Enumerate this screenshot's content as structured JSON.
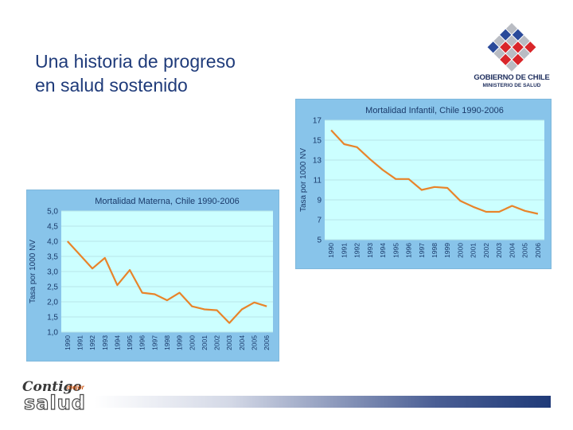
{
  "slide": {
    "title_line1": "Una historia de progreso",
    "title_line2": "en salud sostenido"
  },
  "logo": {
    "name_line1": "GOBIERNO DE CHILE",
    "name_line2": "MINISTERIO DE SALUD",
    "colors": {
      "blue": "#2a4a9a",
      "red": "#d9262a",
      "gray": "#b9bcc3"
    }
  },
  "footer": {
    "brand_word1": "Contigo",
    "brand_small": "mejor",
    "brand_word2": "salud"
  },
  "chart_data": [
    {
      "type": "line",
      "title": "Mortalidad Infantil, Chile 1990-2006",
      "ylabel": "Tasa por 1000 NV",
      "xlabel": "",
      "categories": [
        "1990",
        "1991",
        "1992",
        "1993",
        "1994",
        "1995",
        "1996",
        "1997",
        "1998",
        "1999",
        "2000",
        "2001",
        "2002",
        "2003",
        "2004",
        "2005",
        "2006"
      ],
      "series": [
        {
          "values": [
            16.0,
            14.6,
            14.3,
            13.1,
            12.0,
            11.1,
            11.1,
            10.0,
            10.3,
            10.2,
            8.9,
            8.3,
            7.8,
            7.8,
            8.4,
            7.9,
            7.6
          ]
        }
      ],
      "ylim": [
        5,
        17
      ],
      "yticks": [
        "5",
        "7",
        "9",
        "11",
        "13",
        "15",
        "17"
      ],
      "grid": true,
      "colors": {
        "line": "#e8842a",
        "plot_bg": "#ccffff",
        "frame_bg": "#88c4ea",
        "text": "#1a3a6a"
      }
    },
    {
      "type": "line",
      "title": "Mortalidad Materna, Chile 1990-2006",
      "ylabel": "Tasa por 1000 NV",
      "xlabel": "",
      "categories": [
        "1990",
        "1991",
        "1992",
        "1993",
        "1994",
        "1995",
        "1996",
        "1997",
        "1998",
        "1999",
        "2000",
        "2001",
        "2002",
        "2003",
        "2004",
        "2005",
        "2006"
      ],
      "series": [
        {
          "values": [
            4.0,
            3.55,
            3.1,
            3.45,
            2.55,
            3.05,
            2.3,
            2.25,
            2.05,
            2.3,
            1.85,
            1.75,
            1.72,
            1.3,
            1.75,
            1.98,
            1.85
          ]
        }
      ],
      "ylim": [
        1.0,
        5.0
      ],
      "yticks": [
        "1,0",
        "1,5",
        "2,0",
        "2,5",
        "3,0",
        "3,5",
        "4,0",
        "4,5",
        "5,0"
      ],
      "grid": true,
      "colors": {
        "line": "#e8842a",
        "plot_bg": "#ccffff",
        "frame_bg": "#88c4ea",
        "text": "#1a3a6a"
      }
    }
  ]
}
